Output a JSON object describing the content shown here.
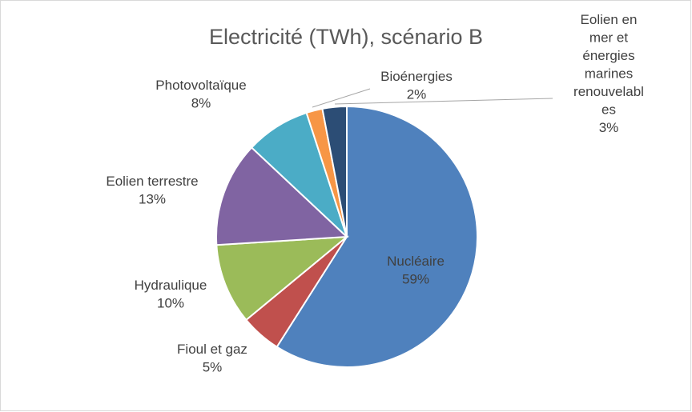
{
  "chart_data": {
    "type": "pie",
    "title": "Electricité (TWh), scénario B",
    "categories": [
      "Nucléaire",
      "Fioul et gaz",
      "Hydraulique",
      "Eolien terrestre",
      "Photovoltaïque",
      "Bioénergies",
      "Eolien en mer et énergies marines renouvelables"
    ],
    "values": [
      59,
      5,
      10,
      13,
      8,
      2,
      3
    ],
    "value_labels": [
      "59%",
      "5%",
      "10%",
      "13%",
      "8%",
      "2%",
      "3%"
    ],
    "colors": [
      "#4f81bd",
      "#c0504d",
      "#9bbb59",
      "#8064a2",
      "#4bacc6",
      "#f79646",
      "#2c4d75"
    ]
  }
}
